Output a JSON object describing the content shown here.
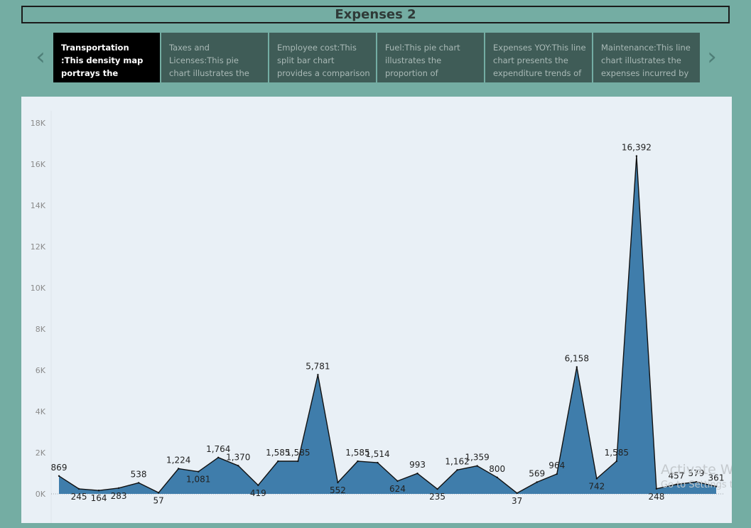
{
  "dashboard": {
    "title": "Expenses 2"
  },
  "nav": {
    "prev_icon": "‹",
    "next_icon": "›"
  },
  "story_points": [
    {
      "label": "Transportation :This density map portrays the expenditure on",
      "active": true
    },
    {
      "label": "Taxes and Licenses:This pie chart illustrates the",
      "active": false
    },
    {
      "label": "Employee cost:This split bar chart provides a comparison",
      "active": false
    },
    {
      "label": "Fuel:This pie chart illustrates the proportion of",
      "active": false
    },
    {
      "label": "Expenses YOY:This line chart  presents the expenditure trends of",
      "active": false
    },
    {
      "label": "Maintenance:This line chart illustrates the expenses incurred by",
      "active": false
    }
  ],
  "watermark": {
    "line1": "Activate Wind",
    "line2": "Go to Settings to a"
  },
  "colors": {
    "area_fill": "#3f7dab",
    "area_stroke": "#111111",
    "panel_bg": "#e9f0f6",
    "page_bg": "#74ada3"
  },
  "chart_data": {
    "type": "area",
    "title": "",
    "xlabel": "",
    "ylabel": "",
    "ylim": [
      0,
      18000
    ],
    "yticks": [
      "0K",
      "2K",
      "4K",
      "6K",
      "8K",
      "10K",
      "12K",
      "14K",
      "16K",
      "18K"
    ],
    "grid": false,
    "values": [
      869,
      245,
      164,
      283,
      538,
      57,
      1224,
      1081,
      1764,
      1370,
      419,
      1585,
      1585,
      5781,
      552,
      1585,
      1514,
      624,
      993,
      235,
      1162,
      1359,
      800,
      37,
      569,
      964,
      6158,
      742,
      1585,
      16392,
      248,
      457,
      579,
      361
    ],
    "data_labels": [
      "869",
      "245",
      "164",
      "283",
      "538",
      "57",
      "1,224",
      "1,081",
      "1,764",
      "1,370",
      "419",
      "1,585",
      "1,585",
      "5,781",
      "552",
      "1,585",
      "1,514",
      "624",
      "993",
      "235",
      "1,162",
      "1,359",
      "800",
      "37",
      "569",
      "964",
      "6,158",
      "742",
      "1,585",
      "16,392",
      "248",
      "457",
      "579",
      "361"
    ]
  }
}
